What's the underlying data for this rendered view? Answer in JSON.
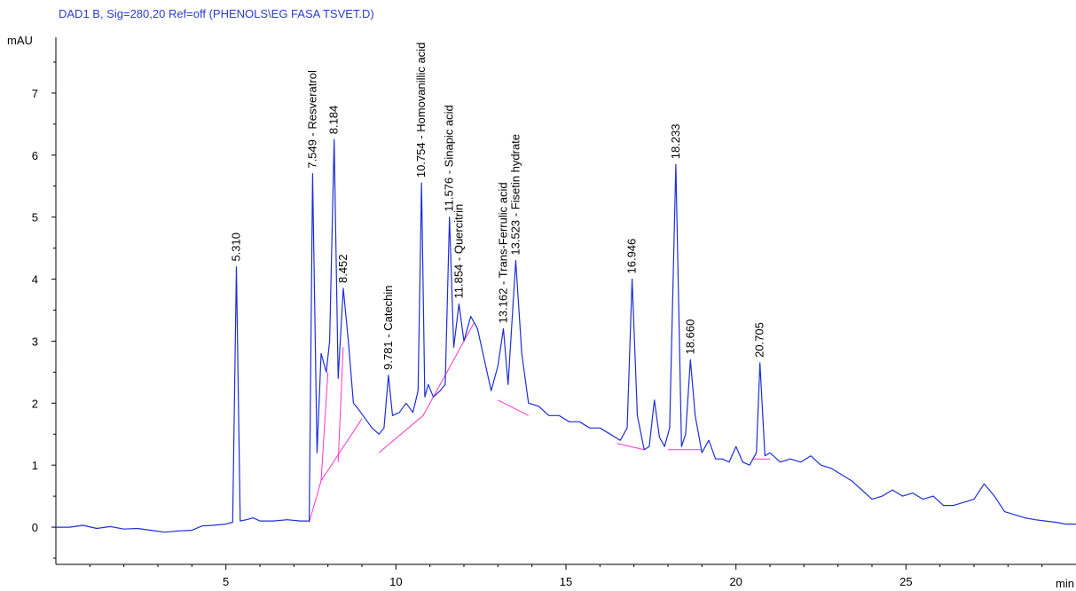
{
  "chart_data": {
    "type": "line",
    "title": "DAD1 B, Sig=280,20 Ref=off (PHENOLS\\EG FASA TSVET.D)",
    "ylabel": "mAU",
    "xlabel": "min",
    "xlim": [
      0,
      30
    ],
    "ylim": [
      -0.6,
      7.9
    ],
    "x_ticks": [
      5,
      10,
      15,
      20,
      25
    ],
    "y_ticks": [
      0,
      1,
      2,
      3,
      4,
      5,
      6,
      7
    ],
    "signal_color": "#1d2ed6",
    "baseline_color": "#ff33cc",
    "series": [
      {
        "x": [
          0.0,
          0.4,
          0.8,
          1.2,
          1.6,
          2.0,
          2.4,
          2.8,
          3.2,
          3.6,
          4.0,
          4.3,
          4.6,
          5.0,
          5.2,
          5.31,
          5.42,
          5.6,
          5.8,
          6.0,
          6.4,
          6.8,
          7.2,
          7.45,
          7.549,
          7.68,
          7.8,
          7.95,
          8.05,
          8.184,
          8.3,
          8.452,
          8.6,
          8.75,
          8.9,
          9.1,
          9.3,
          9.5,
          9.65,
          9.781,
          9.9,
          10.1,
          10.3,
          10.5,
          10.65,
          10.754,
          10.85,
          10.95,
          11.1,
          11.3,
          11.45,
          11.576,
          11.7,
          11.854,
          12.0,
          12.2,
          12.4,
          12.6,
          12.8,
          13.0,
          13.162,
          13.3,
          13.523,
          13.7,
          13.9,
          14.2,
          14.5,
          14.8,
          15.1,
          15.4,
          15.7,
          16.0,
          16.3,
          16.6,
          16.8,
          16.946,
          17.1,
          17.3,
          17.45,
          17.6,
          17.75,
          17.9,
          18.05,
          18.233,
          18.4,
          18.52,
          18.66,
          18.8,
          19.0,
          19.2,
          19.4,
          19.6,
          19.8,
          20.0,
          20.2,
          20.4,
          20.6,
          20.705,
          20.85,
          21.0,
          21.3,
          21.6,
          21.9,
          22.2,
          22.5,
          22.8,
          23.1,
          23.4,
          23.7,
          24.0,
          24.3,
          24.6,
          24.9,
          25.2,
          25.5,
          25.8,
          26.1,
          26.4,
          26.7,
          27.0,
          27.3,
          27.6,
          27.9,
          28.2,
          28.5,
          28.8,
          29.1,
          29.4,
          29.7,
          30.0
        ],
        "y": [
          0.0,
          0.0,
          0.03,
          -0.02,
          0.01,
          -0.03,
          -0.02,
          -0.05,
          -0.08,
          -0.06,
          -0.05,
          0.02,
          0.03,
          0.05,
          0.08,
          4.2,
          0.1,
          0.12,
          0.15,
          0.1,
          0.1,
          0.12,
          0.1,
          0.1,
          5.7,
          1.2,
          2.8,
          2.5,
          3.0,
          6.25,
          2.4,
          3.85,
          3.0,
          2.0,
          1.9,
          1.75,
          1.6,
          1.5,
          1.6,
          2.45,
          1.8,
          1.85,
          2.0,
          1.85,
          2.2,
          5.55,
          2.1,
          2.3,
          2.1,
          2.2,
          2.3,
          5.0,
          2.9,
          3.6,
          3.0,
          3.4,
          3.2,
          2.7,
          2.2,
          2.6,
          3.2,
          2.3,
          4.3,
          2.8,
          2.0,
          1.95,
          1.8,
          1.8,
          1.7,
          1.7,
          1.6,
          1.6,
          1.5,
          1.4,
          1.6,
          4.0,
          1.8,
          1.25,
          1.3,
          2.05,
          1.45,
          1.3,
          1.6,
          5.85,
          1.3,
          1.5,
          2.7,
          1.8,
          1.2,
          1.4,
          1.1,
          1.1,
          1.05,
          1.3,
          1.05,
          1.0,
          1.2,
          2.65,
          1.15,
          1.2,
          1.05,
          1.1,
          1.05,
          1.15,
          1.0,
          0.95,
          0.85,
          0.75,
          0.6,
          0.45,
          0.5,
          0.6,
          0.5,
          0.55,
          0.45,
          0.5,
          0.35,
          0.35,
          0.4,
          0.45,
          0.7,
          0.5,
          0.25,
          0.2,
          0.15,
          0.12,
          0.1,
          0.08,
          0.05,
          0.05
        ]
      }
    ],
    "baselines": [
      {
        "x": [
          7.45,
          7.8,
          9.0
        ],
        "y": [
          0.08,
          0.75,
          1.75
        ]
      },
      {
        "x": [
          7.8,
          8.0
        ],
        "y": [
          0.75,
          2.5
        ]
      },
      {
        "x": [
          8.3,
          8.45
        ],
        "y": [
          1.05,
          2.9
        ]
      },
      {
        "x": [
          9.5,
          10.8,
          12.3
        ],
        "y": [
          1.2,
          1.8,
          3.3
        ]
      },
      {
        "x": [
          13.0,
          13.9
        ],
        "y": [
          2.05,
          1.8
        ]
      },
      {
        "x": [
          16.5,
          17.3
        ],
        "y": [
          1.35,
          1.25
        ]
      },
      {
        "x": [
          18.0,
          19.0
        ],
        "y": [
          1.25,
          1.25
        ]
      },
      {
        "x": [
          20.5,
          21.0
        ],
        "y": [
          1.1,
          1.1
        ]
      }
    ],
    "peaks": [
      {
        "x": 5.31,
        "y": 4.2,
        "label": "5.310"
      },
      {
        "x": 7.549,
        "y": 5.7,
        "label": "7.549 - Resveratrol"
      },
      {
        "x": 8.184,
        "y": 6.25,
        "label": "8.184"
      },
      {
        "x": 8.452,
        "y": 3.85,
        "label": "8.452"
      },
      {
        "x": 9.781,
        "y": 2.45,
        "label": "9.781 - Catechin"
      },
      {
        "x": 10.754,
        "y": 5.55,
        "label": "10.754 - Homovanillic acid"
      },
      {
        "x": 11.576,
        "y": 5.0,
        "label": "11.576 - Sinapic acid"
      },
      {
        "x": 11.854,
        "y": 3.6,
        "label": "11.854 - Quercitrin"
      },
      {
        "x": 13.162,
        "y": 3.2,
        "label": "13.162 - Trans-Ferrulic acid"
      },
      {
        "x": 13.523,
        "y": 4.3,
        "label": "13.523 - Fisetin hydrate"
      },
      {
        "x": 16.946,
        "y": 4.0,
        "label": "16.946"
      },
      {
        "x": 18.233,
        "y": 5.85,
        "label": "18.233"
      },
      {
        "x": 18.66,
        "y": 2.7,
        "label": "18.660"
      },
      {
        "x": 20.705,
        "y": 2.65,
        "label": "20.705"
      }
    ]
  }
}
